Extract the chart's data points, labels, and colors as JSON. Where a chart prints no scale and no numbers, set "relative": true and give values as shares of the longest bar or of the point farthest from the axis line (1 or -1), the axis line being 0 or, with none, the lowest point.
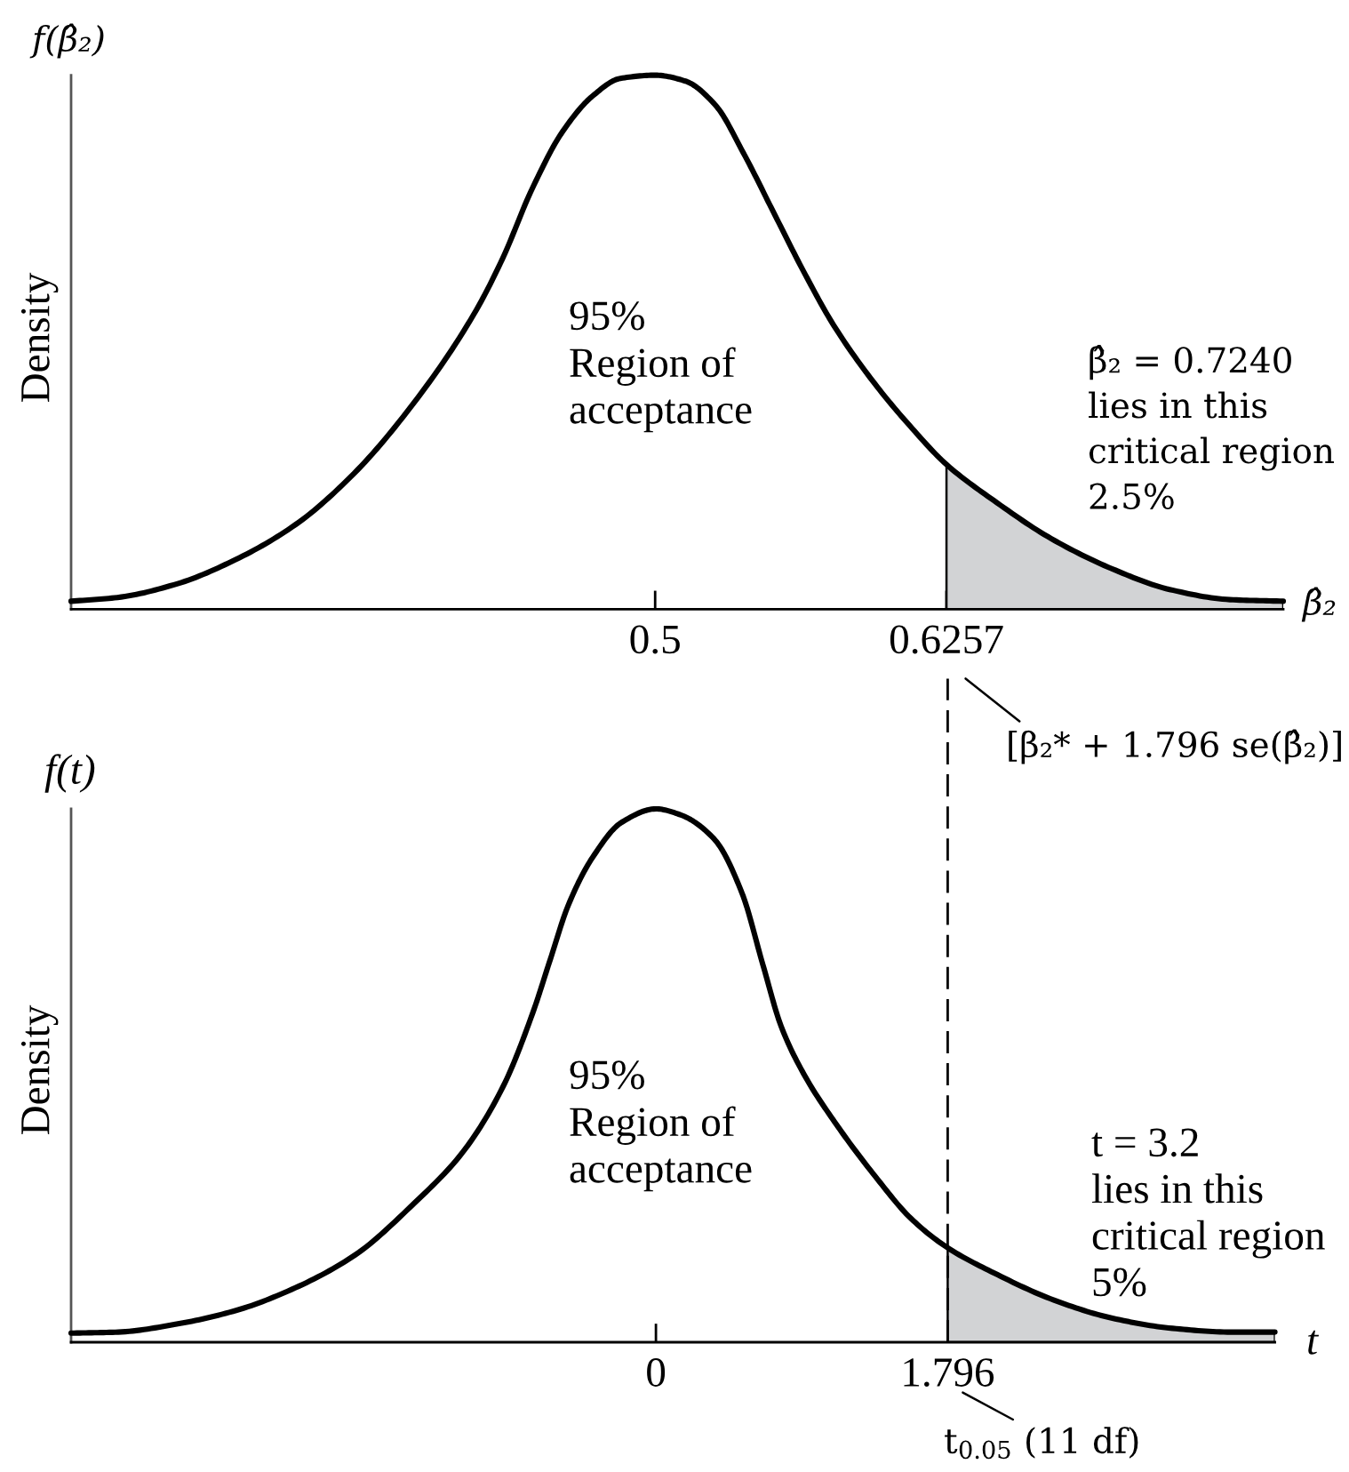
{
  "chart_data": [
    {
      "type": "line",
      "xlabel": "β̂₂",
      "ylabel": "Density",
      "relative": true,
      "xlim": [
        0.248,
        0.771
      ],
      "xticks": [
        0.5,
        0.6257
      ],
      "series": [
        {
          "color": "#000000",
          "x": [
            0.248,
            0.268,
            0.294,
            0.319,
            0.345,
            0.37,
            0.396,
            0.422,
            0.434,
            0.447,
            0.46,
            0.473,
            0.485,
            0.5,
            0.513,
            0.526,
            0.538,
            0.551,
            0.564,
            0.577,
            0.595,
            0.61,
            0.6257,
            0.646,
            0.671,
            0.697,
            0.722,
            0.748,
            0.771
          ],
          "values": [
            0.015,
            0.022,
            0.048,
            0.093,
            0.159,
            0.254,
            0.387,
            0.554,
            0.655,
            0.788,
            0.894,
            0.961,
            0.994,
            1.0,
            0.989,
            0.944,
            0.855,
            0.744,
            0.633,
            0.532,
            0.421,
            0.343,
            0.271,
            0.204,
            0.132,
            0.076,
            0.037,
            0.018,
            0.015
          ]
        },
        {
          "type": "area",
          "color": "#d2d3d5",
          "x": [
            0.6257,
            0.646,
            0.671,
            0.697,
            0.722,
            0.748,
            0.771
          ],
          "values": [
            0.271,
            0.204,
            0.132,
            0.076,
            0.037,
            0.018,
            0.015
          ]
        }
      ],
      "annotations": [
        "f(β̂₂)",
        "95%\nRegion of\nacceptance",
        "β̂₂ = 0.7240\nlies in this\ncritical region\n2.5%",
        "[β₂* + 1.796 se(β̂₂)]"
      ]
    },
    {
      "type": "line",
      "xlabel": "t",
      "ylabel": "Density",
      "relative": true,
      "xlim": [
        -3.6,
        3.81
      ],
      "xticks": [
        0,
        1.796
      ],
      "series": [
        {
          "color": "#000000",
          "x": [
            -3.6,
            -3.31,
            -2.95,
            -2.58,
            -2.22,
            -1.85,
            -1.49,
            -1.19,
            -0.94,
            -0.76,
            -0.65,
            -0.54,
            -0.39,
            -0.21,
            0,
            0.15,
            0.36,
            0.53,
            0.66,
            0.77,
            0.91,
            1.1,
            1.35,
            1.57,
            1.796,
            2.08,
            2.45,
            2.81,
            3.18,
            3.54,
            3.81
          ],
          "values": [
            0.017,
            0.019,
            0.034,
            0.06,
            0.102,
            0.164,
            0.26,
            0.356,
            0.48,
            0.616,
            0.718,
            0.819,
            0.909,
            0.975,
            1.0,
            0.989,
            0.943,
            0.842,
            0.706,
            0.593,
            0.503,
            0.413,
            0.311,
            0.232,
            0.177,
            0.13,
            0.079,
            0.045,
            0.026,
            0.019,
            0.019
          ]
        },
        {
          "type": "area",
          "color": "#d2d3d5",
          "x": [
            1.796,
            2.08,
            2.45,
            2.81,
            3.18,
            3.54,
            3.81
          ],
          "values": [
            0.177,
            0.13,
            0.079,
            0.045,
            0.026,
            0.019,
            0.019
          ]
        }
      ],
      "ref_lines": [
        {
          "axis": "x",
          "value": 1.796,
          "line_style": "dashed",
          "color": "#000000"
        }
      ],
      "annotations": [
        "f(t)",
        "95%\nRegion of\nacceptance",
        "t = 3.2\nlies in this\ncritical region\n5%",
        "t$_{0.05}$ (11 df)"
      ]
    }
  ]
}
